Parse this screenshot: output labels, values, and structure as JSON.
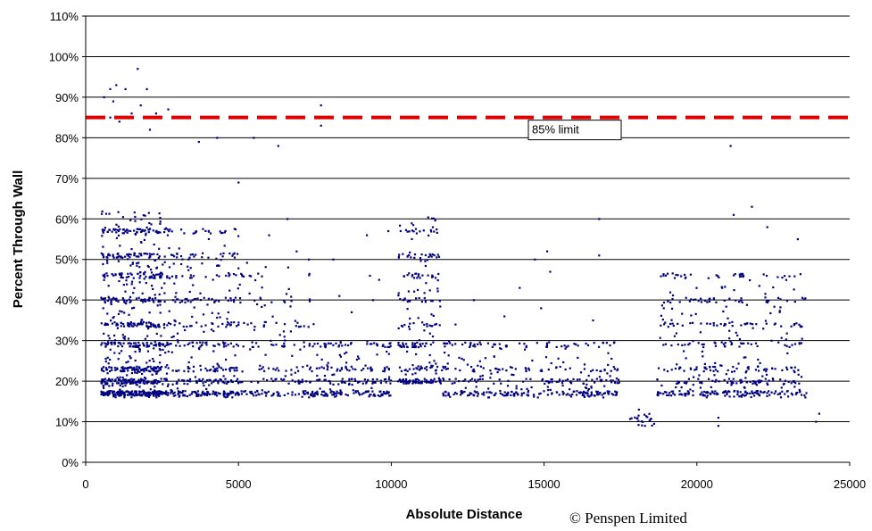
{
  "chart_data": {
    "type": "scatter",
    "title": "",
    "xlabel": "Absolute Distance",
    "ylabel": "Percent Through Wall",
    "xlim": [
      0,
      25000
    ],
    "ylim": [
      0,
      110
    ],
    "x_ticks": [
      "0",
      "5000",
      "10000",
      "15000",
      "20000",
      "25000"
    ],
    "y_ticks": [
      "0%",
      "10%",
      "20%",
      "30%",
      "40%",
      "50%",
      "60%",
      "70%",
      "80%",
      "90%",
      "100%",
      "110%"
    ],
    "grid": "horizontal",
    "marker_color": "#000080",
    "limit_line": {
      "value": 85,
      "color": "#dd0000",
      "label": "85% limit"
    },
    "point_clusters": [
      {
        "x_range": [
          500,
          2500
        ],
        "y_range": [
          16,
          62
        ],
        "count": 900
      },
      {
        "x_range": [
          2500,
          5000
        ],
        "y_range": [
          16,
          60
        ],
        "count": 450
      },
      {
        "x_range": [
          5000,
          7500
        ],
        "y_range": [
          16,
          50
        ],
        "count": 200
      },
      {
        "x_range": [
          7500,
          10000
        ],
        "y_range": [
          16,
          30
        ],
        "count": 220
      },
      {
        "x_range": [
          10200,
          11600
        ],
        "y_range": [
          20,
          61
        ],
        "count": 260
      },
      {
        "x_range": [
          11600,
          17500
        ],
        "y_range": [
          16,
          30
        ],
        "count": 380
      },
      {
        "x_range": [
          17800,
          18600
        ],
        "y_range": [
          9,
          12
        ],
        "count": 20
      },
      {
        "x_range": [
          18700,
          23600
        ],
        "y_range": [
          16,
          46
        ],
        "count": 500
      }
    ],
    "points": [
      [
        1700,
        97
      ],
      [
        1000,
        93
      ],
      [
        800,
        92
      ],
      [
        1300,
        92
      ],
      [
        2000,
        92
      ],
      [
        600,
        90
      ],
      [
        900,
        89
      ],
      [
        2700,
        87
      ],
      [
        7700,
        88
      ],
      [
        7700,
        83
      ],
      [
        1800,
        88
      ],
      [
        1500,
        86
      ],
      [
        800,
        85
      ],
      [
        1100,
        84
      ],
      [
        2100,
        82
      ],
      [
        2300,
        86
      ],
      [
        21100,
        78
      ],
      [
        6300,
        78
      ],
      [
        5500,
        80
      ],
      [
        3700,
        79
      ],
      [
        4300,
        80
      ],
      [
        5000,
        69
      ],
      [
        16800,
        60
      ],
      [
        16800,
        51
      ],
      [
        21200,
        61
      ],
      [
        21800,
        63
      ],
      [
        22300,
        58
      ],
      [
        23300,
        55
      ],
      [
        24000,
        12
      ],
      [
        23900,
        10
      ],
      [
        20700,
        11
      ],
      [
        20700,
        9
      ],
      [
        18100,
        13
      ],
      [
        18300,
        9
      ],
      [
        14700,
        50
      ],
      [
        15100,
        52
      ],
      [
        15200,
        47
      ],
      [
        8100,
        50
      ],
      [
        9200,
        56
      ],
      [
        9300,
        46
      ],
      [
        9600,
        45
      ],
      [
        9900,
        57
      ],
      [
        6600,
        60
      ],
      [
        6000,
        56
      ],
      [
        6900,
        52
      ],
      [
        7300,
        50
      ],
      [
        8300,
        41
      ],
      [
        8700,
        37
      ],
      [
        9400,
        40
      ],
      [
        13700,
        36
      ],
      [
        14200,
        43
      ],
      [
        14900,
        38
      ],
      [
        16600,
        35
      ],
      [
        12700,
        40
      ],
      [
        12100,
        34
      ]
    ]
  },
  "copyright": "© Penspen Limited"
}
